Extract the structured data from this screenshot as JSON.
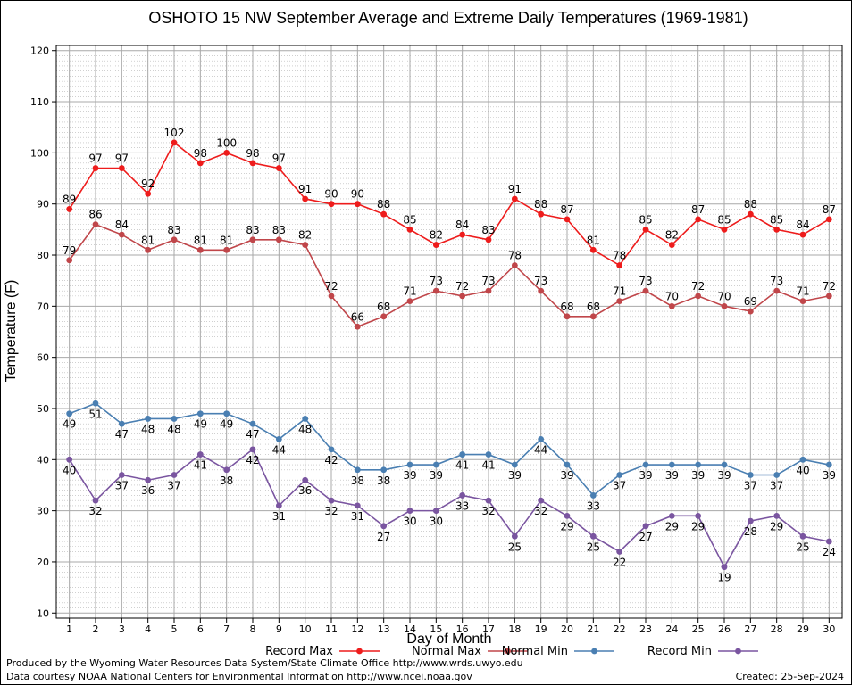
{
  "chart_data": {
    "type": "line",
    "title": "OSHOTO 15 NW September Average and Extreme Daily Temperatures (1969-1981)",
    "xlabel": "Day of Month",
    "ylabel": "Temperature (F)",
    "x": [
      1,
      2,
      3,
      4,
      5,
      6,
      7,
      8,
      9,
      10,
      11,
      12,
      13,
      14,
      15,
      16,
      17,
      18,
      19,
      20,
      21,
      22,
      23,
      24,
      25,
      26,
      27,
      28,
      29,
      30
    ],
    "xlim": [
      0.5,
      30.5
    ],
    "ylim": [
      9,
      121
    ],
    "yticks": [
      10,
      20,
      30,
      40,
      50,
      60,
      70,
      80,
      90,
      100,
      110,
      120
    ],
    "grid": true,
    "legend_position": "bottom",
    "series": [
      {
        "name": "Record Max",
        "color": "#ee1c1c",
        "values": [
          89,
          97,
          97,
          92,
          102,
          98,
          100,
          98,
          97,
          91,
          90,
          90,
          88,
          85,
          82,
          84,
          83,
          91,
          88,
          87,
          81,
          78,
          85,
          82,
          87,
          85,
          88,
          85,
          84,
          87
        ],
        "label_pos": "above"
      },
      {
        "name": "Normal Max",
        "color": "#c0464a",
        "values": [
          79,
          86,
          84,
          81,
          83,
          81,
          81,
          83,
          83,
          82,
          72,
          66,
          68,
          71,
          73,
          72,
          73,
          78,
          73,
          68,
          68,
          71,
          73,
          70,
          72,
          70,
          69,
          73,
          71,
          72
        ],
        "label_pos": "above"
      },
      {
        "name": "Normal Min",
        "color": "#4a7fb2",
        "values": [
          49,
          51,
          47,
          48,
          48,
          49,
          49,
          47,
          44,
          48,
          42,
          38,
          38,
          39,
          39,
          41,
          41,
          39,
          44,
          39,
          33,
          37,
          39,
          39,
          39,
          39,
          37,
          37,
          40,
          39
        ],
        "label_pos": "below"
      },
      {
        "name": "Record Min",
        "color": "#7a55a0",
        "values": [
          40,
          32,
          37,
          36,
          37,
          41,
          38,
          42,
          31,
          36,
          32,
          31,
          27,
          30,
          30,
          33,
          32,
          25,
          32,
          29,
          25,
          22,
          27,
          29,
          29,
          19,
          28,
          29,
          25,
          24
        ],
        "label_pos": "below"
      }
    ]
  },
  "footer": {
    "produced_by": "Produced by the Wyoming Water Resources Data System/State Climate Office http://www.wrds.uwyo.edu",
    "courtesy": "Data courtesy NOAA National Centers for Environmental Information http://www.ncei.noaa.gov",
    "created": "Created:  25-Sep-2024"
  }
}
